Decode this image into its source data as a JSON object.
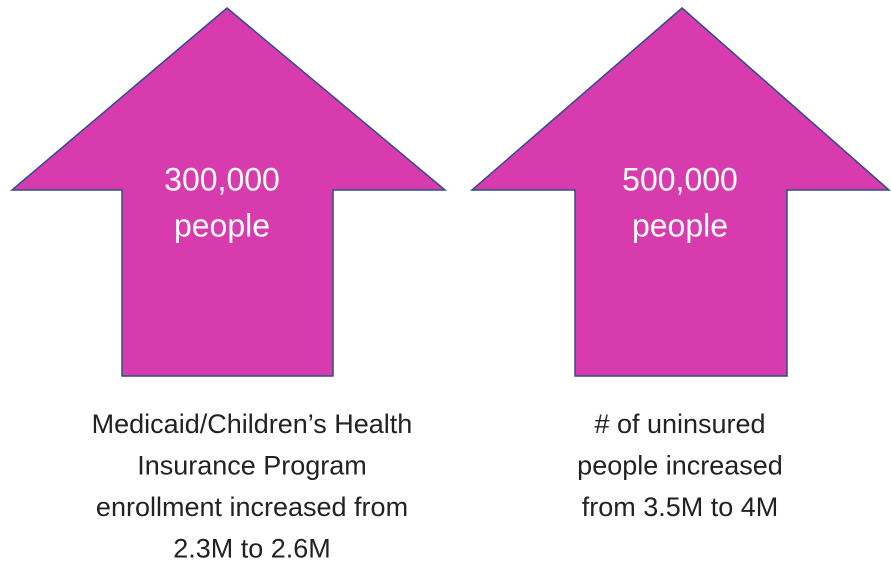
{
  "arrows": [
    {
      "value": "300,000",
      "unit": "people",
      "caption": [
        "Medicaid/Children’s Health",
        "Insurance Program",
        "enrollment increased from",
        "2.3M to 2.6M"
      ]
    },
    {
      "value": "500,000",
      "unit": "people",
      "caption": [
        "# of uninsured",
        "people increased",
        "from 3.5M to 4M"
      ]
    }
  ]
}
